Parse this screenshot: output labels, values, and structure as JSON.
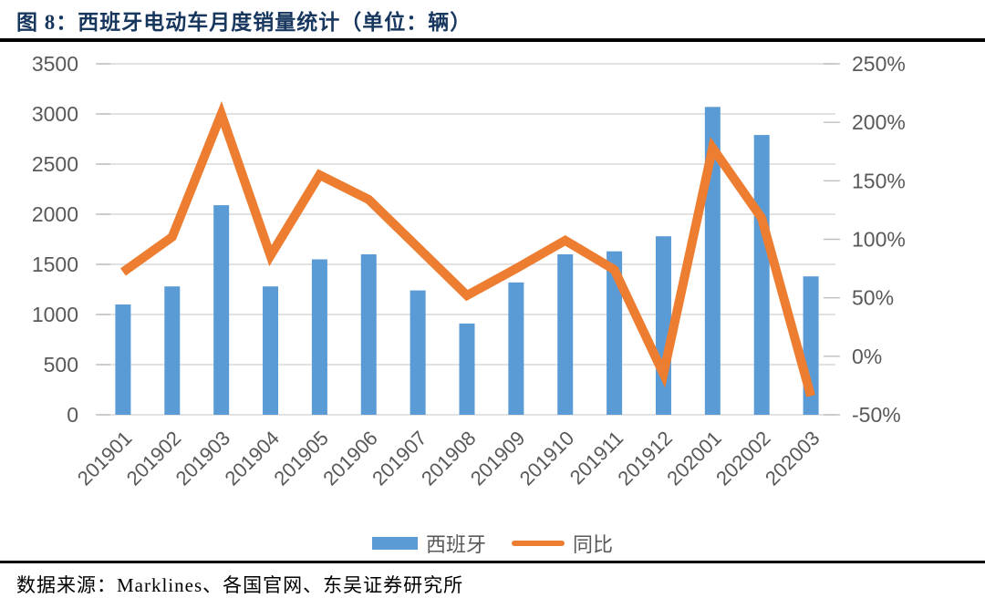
{
  "header": {
    "title": "图 8：西班牙电动车月度销量统计（单位：辆）"
  },
  "footer": {
    "source": "数据来源：Marklines、各国官网、东吴证券研究所"
  },
  "palette": {
    "bar_color": "#5B9BD5",
    "line_color": "#ED7D31",
    "grid_color": "#D9D9D9",
    "tick_color": "#BFBFBF",
    "axis_text_color": "#595959",
    "title_color": "#17375E",
    "rule_color": "#000000"
  },
  "chart_data": {
    "type": "bar+line",
    "title": "西班牙电动车月度销量统计（单位：辆）",
    "categories": [
      "201901",
      "201902",
      "201903",
      "201904",
      "201905",
      "201906",
      "201907",
      "201908",
      "201909",
      "201910",
      "201911",
      "201912",
      "202001",
      "202002",
      "202003"
    ],
    "series": [
      {
        "name": "西班牙",
        "type": "bar",
        "axis": "left",
        "color": "#5B9BD5",
        "values": [
          1100,
          1280,
          2090,
          1280,
          1550,
          1600,
          1240,
          910,
          1320,
          1600,
          1630,
          1780,
          3070,
          2790,
          1380
        ]
      },
      {
        "name": "同比",
        "type": "line",
        "axis": "right",
        "color": "#ED7D31",
        "unit": "%",
        "values": [
          72,
          102,
          207,
          86,
          155,
          134,
          93,
          52,
          75,
          99,
          74,
          -15,
          178,
          118,
          -34
        ]
      }
    ],
    "left_axis": {
      "min": 0,
      "max": 3500,
      "step": 500,
      "tick_labels": [
        "3500",
        "3000",
        "2500",
        "2000",
        "1500",
        "1000",
        "500",
        "0"
      ]
    },
    "right_axis": {
      "min": -50,
      "max": 250,
      "step": 50,
      "tick_labels": [
        "250%",
        "200%",
        "150%",
        "100%",
        "50%",
        "0%",
        "-50%"
      ]
    },
    "grid": true,
    "legend_position": "bottom"
  },
  "legend": {
    "items": [
      {
        "label": "西班牙",
        "type": "bar",
        "color": "#5B9BD5"
      },
      {
        "label": "同比",
        "type": "line",
        "color": "#ED7D31"
      }
    ]
  }
}
